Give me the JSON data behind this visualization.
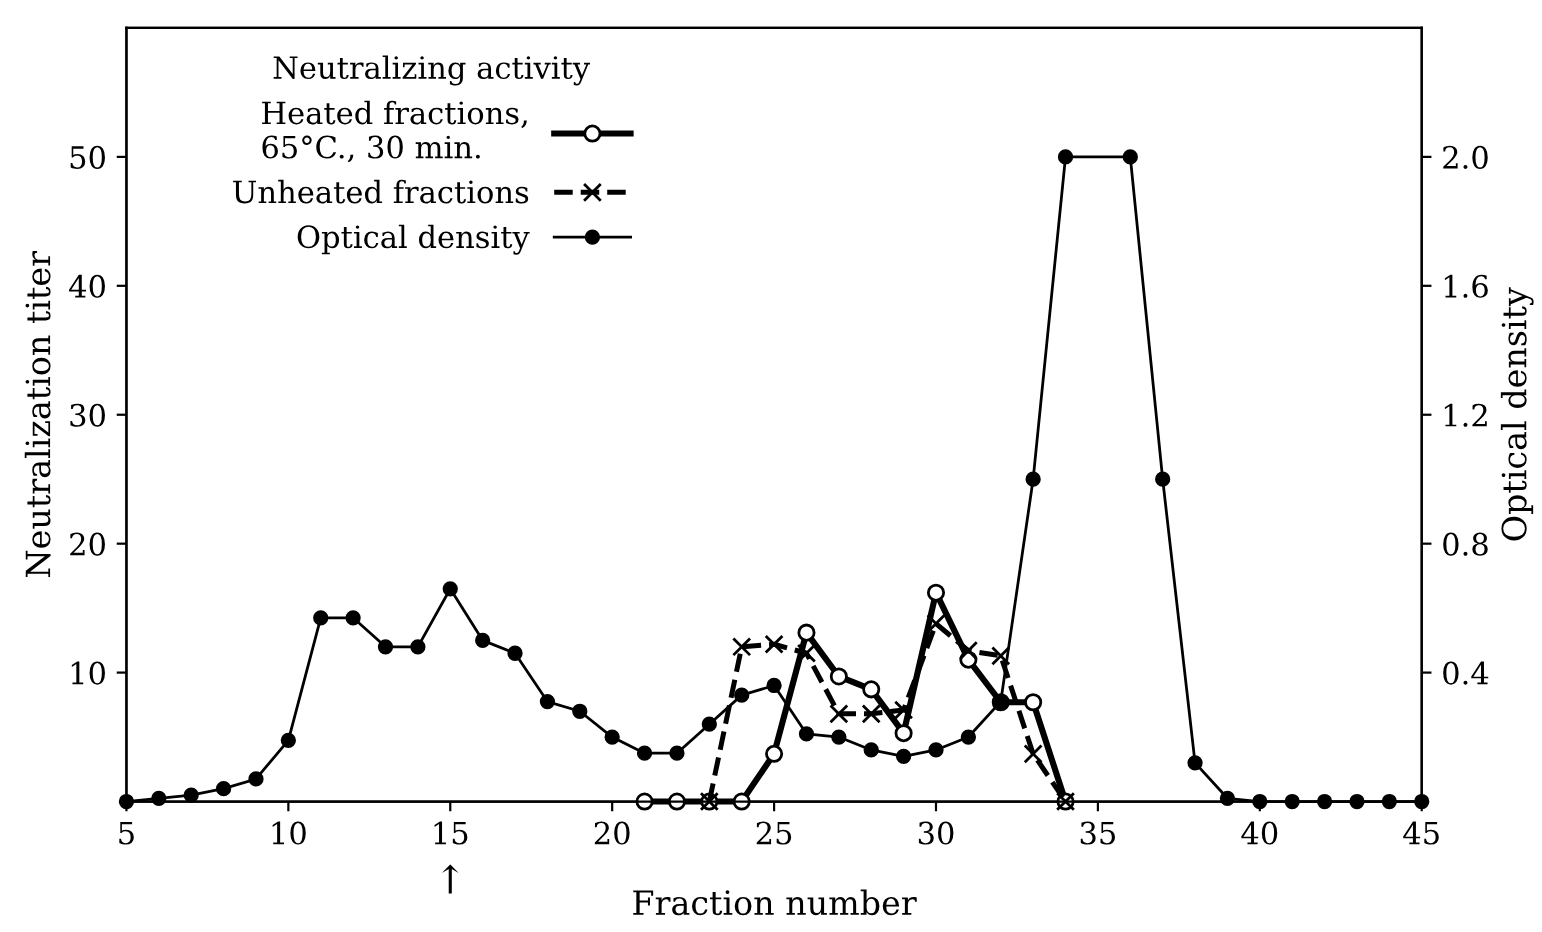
{
  "chart_data": {
    "type": "line",
    "xlabel": "Fraction number",
    "ylabel": "Neutralization titer",
    "y2label": "Optical density",
    "legend_title": "Neutralizing activity",
    "legend": "top left",
    "grid": false,
    "xlim": [
      5,
      45
    ],
    "xticks": [
      5,
      10,
      15,
      20,
      25,
      30,
      35,
      40,
      45
    ],
    "ylim": [
      0,
      60
    ],
    "yticks": [
      10,
      20,
      30,
      40,
      50
    ],
    "y2lim": [
      0,
      2.4
    ],
    "y2ticks": [
      0.4,
      0.8,
      1.2,
      1.6,
      {
        "value": 2.0,
        "label": "2.0"
      }
    ],
    "annotations": [
      "↑"
    ],
    "series": [
      {
        "name": "Heated fractions,\n65°C., 30 min.",
        "color": "#000000",
        "marker": "circle",
        "line_style": "solid",
        "x": [
          21,
          22,
          23,
          24,
          25,
          26,
          27,
          28,
          29,
          30,
          31,
          32,
          33,
          34
        ],
        "values": [
          0,
          0,
          0,
          0,
          3.7,
          13.1,
          9.7,
          8.7,
          5.3,
          16.2,
          11,
          7.7,
          7.7,
          0
        ]
      },
      {
        "name": "Unheated fractions",
        "color": "#000000",
        "marker": "cross",
        "line_style": "dashed",
        "x": [
          23,
          24,
          25,
          26,
          27,
          28,
          29,
          30,
          31,
          32,
          33,
          34
        ],
        "values": [
          0,
          12.0,
          12.2,
          11.5,
          6.8,
          6.8,
          7.1,
          13.8,
          11.7,
          11.3,
          3.7,
          0
        ]
      },
      {
        "name": "Optical density",
        "color": "#000000",
        "marker": "circle",
        "line_style": "solid",
        "axis": "y2",
        "x": [
          5,
          6,
          7,
          8,
          9,
          10,
          11,
          12,
          13,
          14,
          15,
          16,
          17,
          18,
          19,
          20,
          21,
          22,
          23,
          24,
          25,
          26,
          27,
          28,
          29,
          30,
          31,
          32,
          33,
          34,
          36,
          37,
          38,
          39,
          40,
          41,
          42,
          43,
          44,
          45
        ],
        "values": [
          0,
          0.01,
          0.02,
          0.04,
          0.07,
          0.19,
          0.57,
          0.57,
          0.48,
          0.48,
          0.66,
          0.5,
          0.46,
          0.31,
          0.28,
          0.2,
          0.15,
          0.15,
          0.24,
          0.33,
          0.36,
          0.21,
          0.2,
          0.16,
          0.14,
          0.16,
          0.2,
          0.31,
          1.0,
          2.0,
          2.0,
          1.0,
          0.12,
          0.01,
          0,
          0,
          0,
          0,
          0,
          0
        ]
      }
    ]
  }
}
